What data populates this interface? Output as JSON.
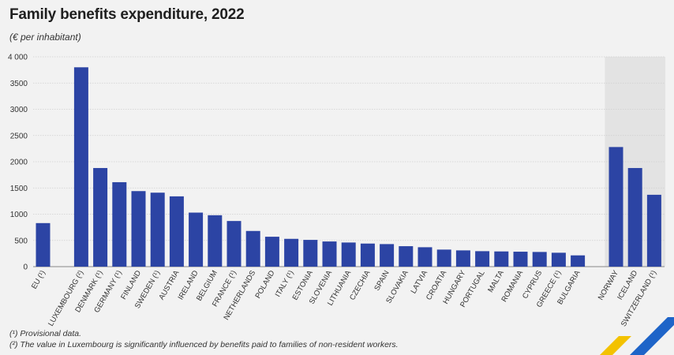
{
  "chart_data": {
    "type": "bar",
    "title": "Family benefits expenditure, 2022",
    "subtitle": "(€ per inhabitant)",
    "xlabel": "",
    "ylabel": "",
    "ylim": [
      0,
      4000
    ],
    "yticks": [
      0,
      500,
      1000,
      1500,
      2000,
      2500,
      3000,
      3500,
      4000
    ],
    "ytick_labels": [
      "0",
      "500",
      "1000",
      "1500",
      "2000",
      "2500",
      "3000",
      "3500",
      "4 000"
    ],
    "grid": true,
    "bar_color": "#2c44a4",
    "shaded_group_color": "#e3e3e3",
    "groups": [
      {
        "name": "eu",
        "shaded": false,
        "categories": [
          "EU (¹)"
        ],
        "values": [
          830
        ]
      },
      {
        "name": "member-states",
        "shaded": false,
        "categories": [
          "LUXEMBOURG (²)",
          "DENMARK (¹)",
          "GERMANY (¹)",
          "FINLAND",
          "SWEDEN (¹)",
          "AUSTRIA",
          "IRELAND",
          "BELGIUM",
          "FRANCE (¹)",
          "NETHERLANDS",
          "POLAND",
          "ITALY (¹)",
          "ESTONIA",
          "SLOVENIA",
          "LITHUANIA",
          "CZECHIA",
          "SPAIN",
          "SLOVAKIA",
          "LATVIA",
          "CROATIA",
          "HUNGARY",
          "PORTUGAL",
          "MALTA",
          "ROMANIA",
          "CYPRUS",
          "GREECE (¹)",
          "BULGARIA"
        ],
        "values": [
          3800,
          1880,
          1610,
          1440,
          1410,
          1340,
          1030,
          980,
          870,
          680,
          570,
          530,
          510,
          480,
          460,
          440,
          430,
          390,
          370,
          325,
          310,
          295,
          290,
          285,
          280,
          265,
          215
        ]
      },
      {
        "name": "efta",
        "shaded": true,
        "categories": [
          "NORWAY",
          "ICELAND",
          "SWITZERLAND (¹)"
        ],
        "values": [
          2280,
          1880,
          1370
        ]
      }
    ]
  },
  "footnotes": [
    "(¹) Provisional data.",
    "(²) The value in Luxembourg is significantly influenced by benefits paid to families of non-resident workers."
  ],
  "colors": {
    "logo_yellow": "#f3c200",
    "logo_blue": "#1e64c8"
  }
}
